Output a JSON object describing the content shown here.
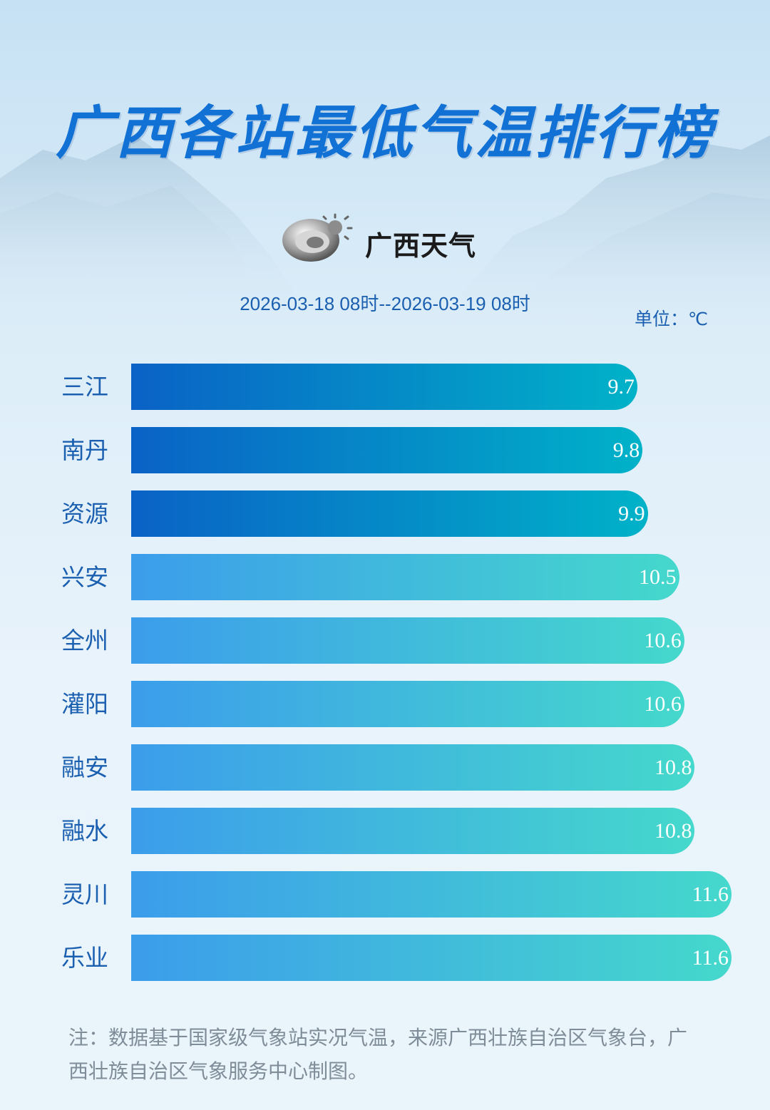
{
  "header": {
    "title": "广西各站最低气温排行榜",
    "logo_text": "广西天气",
    "period": "2026-03-18 08时--2026-03-19 08时",
    "unit": "单位：℃"
  },
  "colors": {
    "title": "#1271d4",
    "cold_start": "#0a62c6",
    "cold_end": "#00b2c8",
    "mild_start": "#3c9deb",
    "mild_end": "#45d8cc",
    "label": "#1a5fb0"
  },
  "chart_data": {
    "type": "bar",
    "orientation": "horizontal",
    "categories": [
      "三江",
      "南丹",
      "资源",
      "兴安",
      "全州",
      "灌阳",
      "融安",
      "融水",
      "灵川",
      "乐业"
    ],
    "values": [
      9.7,
      9.8,
      9.9,
      10.5,
      10.6,
      10.6,
      10.8,
      10.8,
      11.6,
      11.6
    ],
    "value_labels": [
      "9.7",
      "9.8",
      "9.9",
      "10.5",
      "10.6",
      "10.6",
      "10.8",
      "10.8",
      "11.6",
      "11.6"
    ],
    "highlight_count": 3
  },
  "footer": {
    "note": "注：数据基于国家级气象站实况气温，来源广西壮族自治区气象台，广西壮族自治区气象服务中心制图。"
  }
}
